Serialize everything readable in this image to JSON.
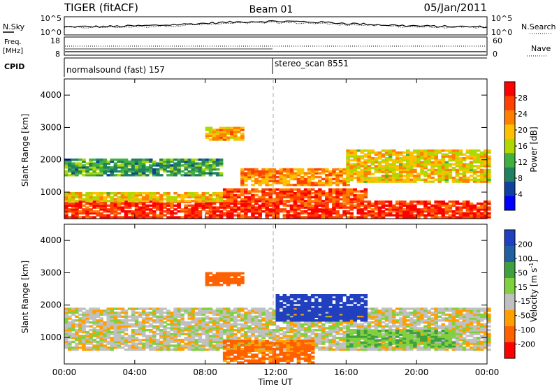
{
  "header": {
    "title": "TIGER (fitACF)",
    "beam": "Beam 01",
    "date": "05/Jan/2011"
  },
  "top_panel": {
    "left_label": "N.Sky",
    "right_label": "N.Search",
    "left_ticks": [
      "10^5",
      "10^0"
    ],
    "right_ticks": [
      "10^5",
      "10^0"
    ]
  },
  "freq_panel": {
    "left_label_1": "Freq.",
    "left_label_2": "[MHz]",
    "left_ticks": [
      "18",
      "8"
    ],
    "right_label": "Nave",
    "right_ticks": [
      "60",
      "0"
    ]
  },
  "cpid": {
    "label": "CPID",
    "program_1": "normalsound (fast) 157",
    "program_2": "stereo_scan 8551",
    "switch_time_hours": 12
  },
  "axes": {
    "x_ticks": [
      "00:00",
      "04:00",
      "08:00",
      "12:00",
      "16:00",
      "20:00",
      "00:00"
    ],
    "xlabel": "Time UT",
    "ylabel": "Slant Range [km]",
    "y_ticks": [
      "1000",
      "2000",
      "3000",
      "4000"
    ]
  },
  "power_colorbar": {
    "label": "Power [dB]",
    "ticks": [
      "28",
      "24",
      "20",
      "16",
      "12",
      "8",
      "4"
    ],
    "colors": [
      "#ff0000",
      "#ff4000",
      "#ff8000",
      "#ffc000",
      "#b0d800",
      "#40b040",
      "#208060",
      "#1040a0",
      "#0000ff"
    ]
  },
  "velocity_colorbar": {
    "label": "Velocity [m s",
    "label_sup": "-1",
    "label_end": "]",
    "ticks": [
      "200",
      "100",
      "50",
      "15",
      "-15",
      "-50",
      "-100",
      "-200"
    ],
    "colors": [
      "#2040c0",
      "#2060a0",
      "#40a040",
      "#80d040",
      "#c0c0c0",
      "#ffa000",
      "#ff6000",
      "#ff0000"
    ]
  },
  "chart_data": [
    {
      "type": "heatmap",
      "title": "Power [dB]",
      "xlabel": "Time UT",
      "ylabel": "Slant Range [km]",
      "xlim": [
        0,
        24
      ],
      "ylim": [
        180,
        4500
      ],
      "colorbar_range": [
        0,
        30
      ],
      "regions": [
        {
          "t": [
            0,
            24
          ],
          "r": [
            200,
            700
          ],
          "level": 28
        },
        {
          "t": [
            0,
            9
          ],
          "r": [
            700,
            1000
          ],
          "level": 18
        },
        {
          "t": [
            0,
            9
          ],
          "r": [
            1500,
            2000
          ],
          "level": 10
        },
        {
          "t": [
            9,
            17
          ],
          "r": [
            700,
            1100
          ],
          "level": 26
        },
        {
          "t": [
            10,
            16
          ],
          "r": [
            1200,
            1700
          ],
          "level": 22
        },
        {
          "t": [
            16,
            24
          ],
          "r": [
            1300,
            2300
          ],
          "level": 18
        },
        {
          "t": [
            8,
            10
          ],
          "r": [
            2600,
            3000
          ],
          "level": 20
        }
      ]
    },
    {
      "type": "heatmap",
      "title": "Velocity [m s-1]",
      "xlabel": "Time UT",
      "ylabel": "Slant Range [km]",
      "xlim": [
        0,
        24
      ],
      "ylim": [
        180,
        4500
      ],
      "colorbar_range": [
        -200,
        200
      ],
      "regions": [
        {
          "t": [
            0,
            24
          ],
          "r": [
            600,
            1900
          ],
          "level": 0
        },
        {
          "t": [
            12,
            17
          ],
          "r": [
            1500,
            2300
          ],
          "level": 180
        },
        {
          "t": [
            9,
            14
          ],
          "r": [
            200,
            900
          ],
          "level": -40
        },
        {
          "t": [
            16,
            22
          ],
          "r": [
            700,
            1200
          ],
          "level": 30
        },
        {
          "t": [
            8,
            10
          ],
          "r": [
            2600,
            3000
          ],
          "level": -60
        }
      ]
    }
  ]
}
